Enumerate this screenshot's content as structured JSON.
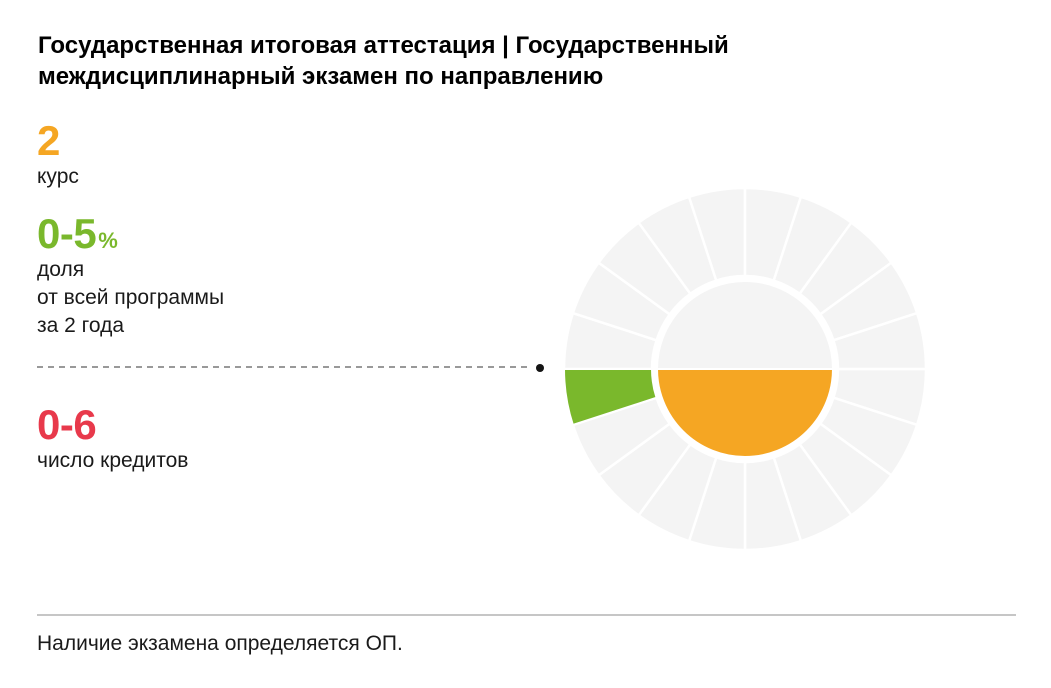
{
  "header": {
    "title": "Государственная итоговая аттестация | Государственный\nмеждисциплинарный экзамен по направлению"
  },
  "stats": {
    "course": {
      "value": "2",
      "label": "курс",
      "color": "#f5a623"
    },
    "share": {
      "value": "0-5",
      "unit": "%",
      "label": "доля\nот всей программы\nза 2 года",
      "color": "#7ab82c"
    },
    "credits": {
      "value": "0-6",
      "label": "число кредитов",
      "color": "#e8394b"
    }
  },
  "footer": {
    "note": "Наличие экзамена определяется ОП."
  },
  "chart_data": {
    "type": "radial-donut-wheel",
    "title": "",
    "angle_convention": "degrees clockwise from 3 o'clock position",
    "segments_total": 20,
    "segment_angle_deg": 18,
    "segment_value_pct": 5,
    "ring_color": "#f4f4f4",
    "divider_color": "#ffffff",
    "inner_top_color": "#f4f4f4",
    "highlight_segment": {
      "label": "доля от всей программы 0-5%",
      "start_deg": 162,
      "end_deg": 180,
      "color": "#7ab82c"
    },
    "inner_bottom_semicircle": {
      "label": "2 курс",
      "start_deg": 0,
      "end_deg": 180,
      "color": "#f5a623"
    },
    "geometry": {
      "outer_radius": 181,
      "ring_inner_radius": 93,
      "inner_radius": 88
    }
  }
}
